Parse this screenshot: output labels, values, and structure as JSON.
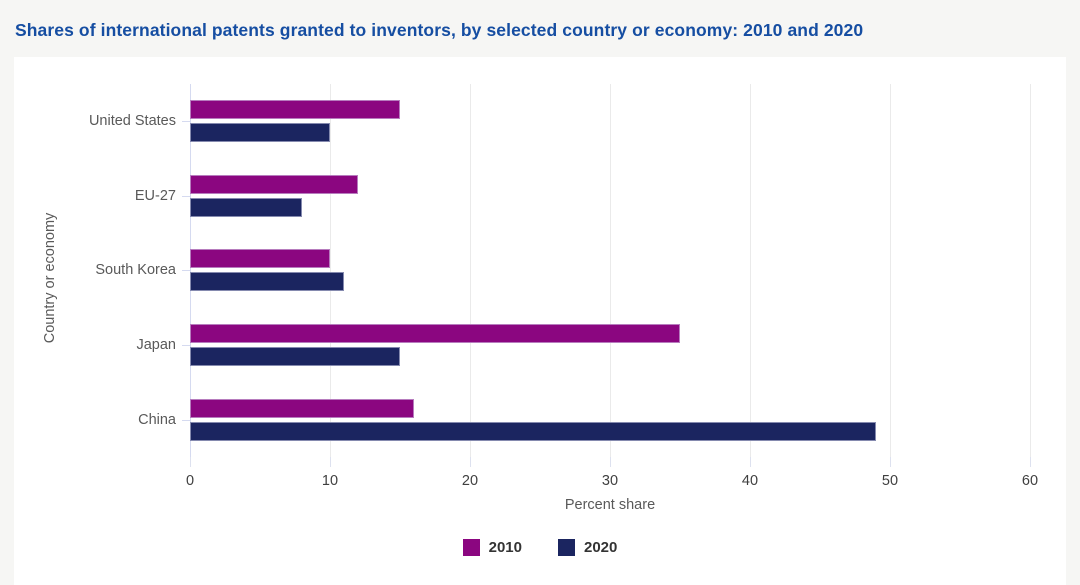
{
  "page": {
    "title": "Shares of international patents granted to inventors, by selected country or economy: 2010 and 2020"
  },
  "colors": {
    "title_text": "#164ea2",
    "background": "#f6f6f4",
    "card_background": "#ffffff",
    "gridline": "#eaeaea",
    "axis_zero_line": "#d5daf0",
    "category_text": "#595959",
    "tick_text": "#3f3f3f",
    "series_2010": "#8b0680",
    "series_2020": "#1b2560"
  },
  "chart_data": {
    "type": "bar",
    "orientation": "horizontal",
    "title": "Shares of international patents granted to inventors, by selected country or economy: 2010 and 2020",
    "categories": [
      "United States",
      "EU-27",
      "South Korea",
      "Japan",
      "China"
    ],
    "series": [
      {
        "name": "2010",
        "color": "#8b0680",
        "values": [
          15,
          12,
          10,
          35,
          16
        ]
      },
      {
        "name": "2020",
        "color": "#1b2560",
        "values": [
          10,
          8,
          11,
          15,
          49
        ]
      }
    ],
    "xlabel": "Percent share",
    "ylabel": "Country or economy",
    "xlim": [
      0,
      60
    ],
    "xticks": [
      0,
      10,
      20,
      30,
      40,
      50,
      60
    ],
    "grid": "vertical",
    "legend_position": "bottom"
  }
}
